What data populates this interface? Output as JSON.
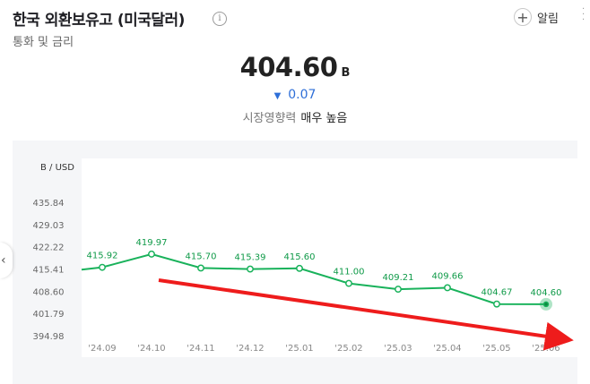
{
  "header": {
    "title": "한국 외환보유고 (미국달러)",
    "subtitle": "통화 및 금리",
    "info_icon": "i"
  },
  "alert": {
    "label": "알림",
    "icon": "plus-icon"
  },
  "price": {
    "value": "404.60",
    "unit": "B",
    "change": "0.07",
    "direction": "down",
    "impact_label": "시장영향력",
    "impact_value": "매우 높음"
  },
  "chart_data": {
    "type": "line",
    "unit_label": "B / USD",
    "categories": [
      "'24.09",
      "'24.10",
      "'24.11",
      "'24.12",
      "'25.01",
      "'25.02",
      "'25.03",
      "'25.04",
      "'25.05",
      "'25.06"
    ],
    "values": [
      415.92,
      419.97,
      415.7,
      415.39,
      415.6,
      411.0,
      409.21,
      409.66,
      404.67,
      404.6
    ],
    "labels": [
      "415.92",
      "419.97",
      "415.70",
      "415.39",
      "415.60",
      "411.00",
      "409.21",
      "409.66",
      "404.67",
      "404.60"
    ],
    "y_ticks": [
      "435.84",
      "429.03",
      "422.22",
      "415.41",
      "408.60",
      "401.79",
      "394.98"
    ],
    "ylim": [
      394.98,
      435.84
    ],
    "line_color": "#19b25b",
    "label_color": "#0f9a48",
    "arrow_color": "#ee1c1c"
  }
}
